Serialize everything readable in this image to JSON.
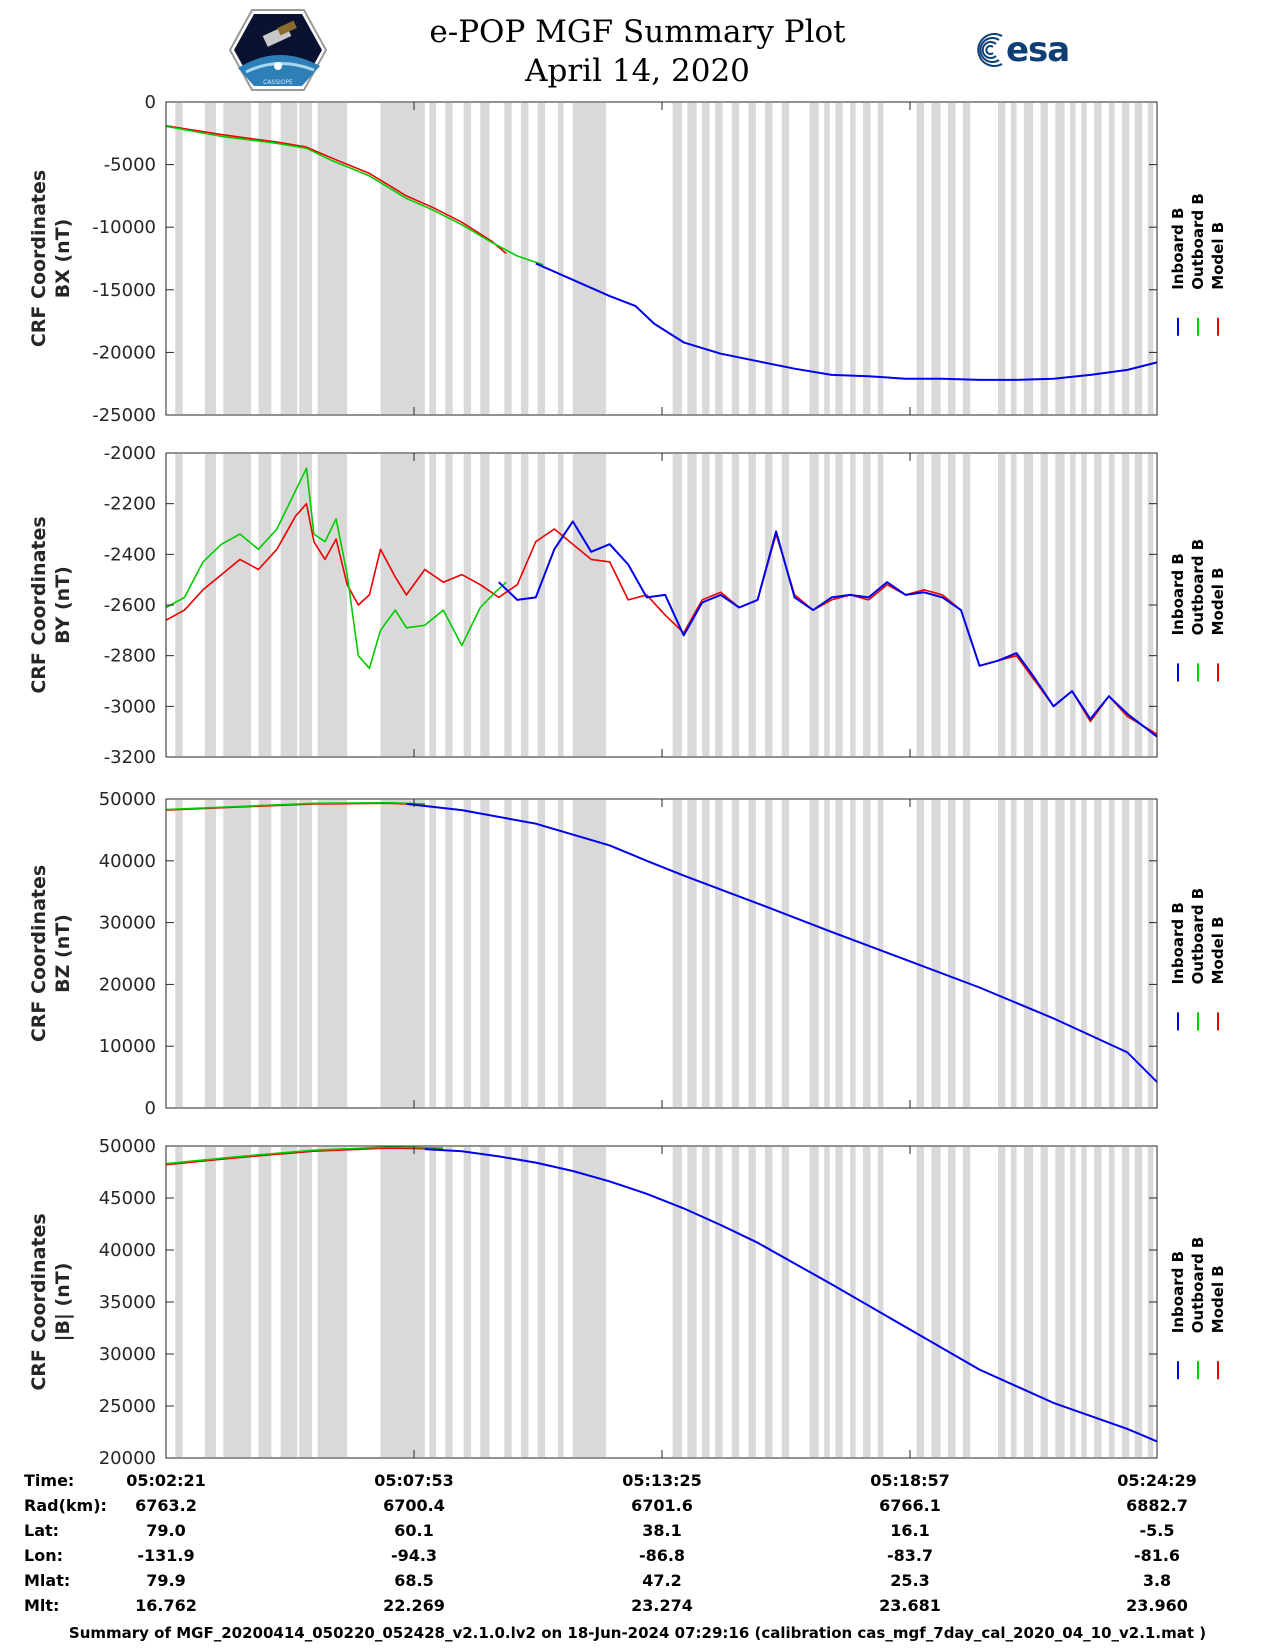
{
  "header": {
    "title": "e-POP MGF Summary Plot",
    "date": "April 14, 2020",
    "logo_left_text": "CASSIOPE",
    "logo_right_text": "esa"
  },
  "colors": {
    "inboard": "#0000ee",
    "outboard": "#00cc00",
    "model": "#ee0000",
    "shade": "#d9d9d9",
    "esa_blue": "#0d3f74"
  },
  "legend": [
    "Inboard B",
    "Outboard B",
    "Model B"
  ],
  "shaded_intervals": [
    [
      0.25,
      0.45
    ],
    [
      1.05,
      1.35
    ],
    [
      1.55,
      2.3
    ],
    [
      2.5,
      2.85
    ],
    [
      3.1,
      3.55
    ],
    [
      3.6,
      3.95
    ],
    [
      4.1,
      4.9
    ],
    [
      5.8,
      7.0
    ],
    [
      7.12,
      7.3
    ],
    [
      7.55,
      7.75
    ],
    [
      8.05,
      8.25
    ],
    [
      8.5,
      8.75
    ],
    [
      9.15,
      9.35
    ],
    [
      9.6,
      9.8
    ],
    [
      10.05,
      10.25
    ],
    [
      10.6,
      10.75
    ],
    [
      11.0,
      11.9
    ],
    [
      13.7,
      13.95
    ],
    [
      14.1,
      14.35
    ],
    [
      14.5,
      14.7
    ],
    [
      14.85,
      15.05
    ],
    [
      15.3,
      15.5
    ],
    [
      15.75,
      15.95
    ],
    [
      16.2,
      16.4
    ],
    [
      16.65,
      16.85
    ],
    [
      17.4,
      17.65
    ],
    [
      17.8,
      17.95
    ],
    [
      18.1,
      18.3
    ],
    [
      18.5,
      18.65
    ],
    [
      18.85,
      19.05
    ],
    [
      19.25,
      19.4
    ],
    [
      20.3,
      20.5
    ],
    [
      20.7,
      20.95
    ],
    [
      21.15,
      21.35
    ],
    [
      21.55,
      21.75
    ],
    [
      22.5,
      22.7
    ],
    [
      22.85,
      23.0
    ],
    [
      23.2,
      23.45
    ],
    [
      23.65,
      23.85
    ],
    [
      24.05,
      24.3
    ],
    [
      24.45,
      24.6
    ],
    [
      24.75,
      24.9
    ],
    [
      25.1,
      25.3
    ],
    [
      25.5,
      25.65
    ],
    [
      25.85,
      26.05
    ],
    [
      26.2,
      26.4
    ],
    [
      26.55,
      26.7
    ]
  ],
  "chart_data": [
    {
      "type": "line",
      "ylabel_line1": "CRF Coordinates",
      "ylabel_line2": "BX (nT)",
      "ylim": [
        -25000,
        0
      ],
      "yticks": [
        "0",
        "-5000",
        "-10000",
        "-15000",
        "-20000",
        "-25000"
      ],
      "ytick_values": [
        0,
        -5000,
        -10000,
        -15000,
        -20000,
        -25000
      ],
      "x_unit": "minutes after 05:02:21",
      "xlim": [
        0,
        26.8
      ],
      "series": [
        {
          "name": "Model B",
          "x": [
            0,
            1.5,
            3,
            3.8,
            4.5,
            5.5,
            6.5,
            7.2,
            8,
            8.8,
            9.2
          ],
          "values": [
            -1900,
            -2600,
            -3200,
            -3600,
            -4500,
            -5700,
            -7500,
            -8400,
            -9600,
            -11100,
            -12100
          ]
        },
        {
          "name": "Outboard B",
          "x": [
            0,
            1.5,
            3,
            3.8,
            4.5,
            5.5,
            6.5,
            7.2,
            8,
            8.8,
            9.5,
            10.2
          ],
          "values": [
            -1950,
            -2750,
            -3300,
            -3700,
            -4700,
            -5900,
            -7700,
            -8600,
            -9800,
            -11200,
            -12300,
            -13000
          ]
        },
        {
          "name": "Inboard B",
          "x": [
            10,
            11,
            12,
            12.7,
            13.2,
            14,
            15,
            16,
            17,
            18,
            19,
            20,
            21,
            22,
            23,
            24,
            25,
            26,
            26.8
          ],
          "values": [
            -12900,
            -14200,
            -15500,
            -16300,
            -17700,
            -19200,
            -20100,
            -20700,
            -21300,
            -21800,
            -21900,
            -22100,
            -22100,
            -22200,
            -22200,
            -22100,
            -21800,
            -21400,
            -20800
          ]
        }
      ]
    },
    {
      "type": "line",
      "ylabel_line1": "CRF Coordinates",
      "ylabel_line2": "BY (nT)",
      "ylim": [
        -3200,
        -2000
      ],
      "yticks": [
        "-2000",
        "-2200",
        "-2400",
        "-2600",
        "-2800",
        "-3000",
        "-3200"
      ],
      "ytick_values": [
        -2000,
        -2200,
        -2400,
        -2600,
        -2800,
        -3000,
        -3200
      ],
      "x_unit": "minutes after 05:02:21",
      "xlim": [
        0,
        26.8
      ],
      "series": [
        {
          "name": "Model B",
          "x": [
            0,
            0.5,
            1,
            1.5,
            2,
            2.5,
            3,
            3.5,
            3.8,
            4.0,
            4.3,
            4.6,
            4.9,
            5.2,
            5.5,
            5.8,
            6.2,
            6.5,
            7,
            7.5,
            8,
            8.5,
            9,
            9.5,
            10,
            10.5,
            11,
            11.5,
            12,
            12.5,
            13,
            13.5,
            14,
            14.5,
            15,
            15.5,
            16,
            16.5,
            17,
            17.5,
            18,
            18.5,
            19,
            19.5,
            20,
            20.5,
            21,
            21.5,
            22,
            22.5,
            23,
            23.5,
            24,
            24.5,
            25,
            25.5,
            26,
            26.8
          ],
          "values": [
            -2660,
            -2620,
            -2540,
            -2480,
            -2420,
            -2460,
            -2380,
            -2250,
            -2200,
            -2350,
            -2420,
            -2340,
            -2520,
            -2600,
            -2560,
            -2380,
            -2490,
            -2560,
            -2460,
            -2510,
            -2480,
            -2520,
            -2570,
            -2520,
            -2350,
            -2300,
            -2360,
            -2420,
            -2430,
            -2580,
            -2560,
            -2640,
            -2710,
            -2580,
            -2550,
            -2610,
            -2580,
            -2320,
            -2560,
            -2620,
            -2580,
            -2560,
            -2580,
            -2520,
            -2560,
            -2540,
            -2560,
            -2620,
            -2840,
            -2820,
            -2800,
            -2900,
            -3000,
            -2940,
            -3060,
            -2960,
            -3040,
            -3110
          ]
        },
        {
          "name": "Outboard B",
          "x": [
            0,
            0.5,
            1,
            1.5,
            2,
            2.5,
            3,
            3.5,
            3.8,
            4.0,
            4.3,
            4.6,
            4.9,
            5.2,
            5.5,
            5.8,
            6.2,
            6.5,
            7,
            7.5,
            8,
            8.5,
            8.9,
            9.2
          ],
          "values": [
            -2610,
            -2570,
            -2430,
            -2360,
            -2320,
            -2380,
            -2300,
            -2150,
            -2060,
            -2320,
            -2350,
            -2260,
            -2480,
            -2800,
            -2850,
            -2700,
            -2620,
            -2690,
            -2680,
            -2620,
            -2760,
            -2610,
            -2550,
            -2510
          ]
        },
        {
          "name": "Inboard B",
          "x": [
            9.0,
            9.5,
            10,
            10.5,
            11,
            11.5,
            12,
            12.5,
            13,
            13.5,
            14,
            14.5,
            15,
            15.5,
            16,
            16.5,
            17,
            17.5,
            18,
            18.5,
            19,
            19.5,
            20,
            20.5,
            21,
            21.5,
            22,
            22.5,
            23,
            23.5,
            24,
            24.5,
            25,
            25.5,
            26,
            26.8
          ],
          "values": [
            -2510,
            -2580,
            -2570,
            -2380,
            -2270,
            -2390,
            -2360,
            -2440,
            -2570,
            -2560,
            -2720,
            -2590,
            -2560,
            -2610,
            -2580,
            -2310,
            -2570,
            -2620,
            -2570,
            -2560,
            -2570,
            -2510,
            -2560,
            -2550,
            -2570,
            -2620,
            -2840,
            -2820,
            -2790,
            -2890,
            -3000,
            -2940,
            -3050,
            -2960,
            -3030,
            -3120
          ]
        }
      ]
    },
    {
      "type": "line",
      "ylabel_line1": "CRF Coordinates",
      "ylabel_line2": "BZ (nT)",
      "ylim": [
        0,
        50000
      ],
      "yticks": [
        "50000",
        "40000",
        "30000",
        "20000",
        "10000",
        "0"
      ],
      "ytick_values": [
        50000,
        40000,
        30000,
        20000,
        10000,
        0
      ],
      "x_unit": "minutes after 05:02:21",
      "xlim": [
        0,
        26.8
      ],
      "series": [
        {
          "name": "Model B",
          "x": [
            0,
            2,
            4,
            6,
            7
          ],
          "values": [
            48200,
            48700,
            49200,
            49300,
            49100
          ]
        },
        {
          "name": "Outboard B",
          "x": [
            0,
            2,
            4,
            6,
            7
          ],
          "values": [
            48300,
            48800,
            49300,
            49400,
            49200
          ]
        },
        {
          "name": "Inboard B",
          "x": [
            6.5,
            8,
            10,
            12,
            13,
            14,
            16,
            18,
            20,
            22,
            24,
            26,
            26.8
          ],
          "values": [
            49200,
            48200,
            46000,
            42500,
            40000,
            37600,
            33100,
            28500,
            24000,
            19500,
            14500,
            9000,
            4200
          ]
        }
      ]
    },
    {
      "type": "line",
      "ylabel_line1": "CRF Coordinates",
      "ylabel_line2": "|B| (nT)",
      "ylim": [
        20000,
        50000
      ],
      "yticks": [
        "50000",
        "45000",
        "40000",
        "35000",
        "30000",
        "25000",
        "20000"
      ],
      "ytick_values": [
        50000,
        45000,
        40000,
        35000,
        30000,
        25000,
        20000
      ],
      "x_unit": "minutes after 05:02:21",
      "xlim": [
        0,
        26.8
      ],
      "series": [
        {
          "name": "Model B",
          "x": [
            0,
            2,
            4,
            6,
            7.5
          ],
          "values": [
            48200,
            48900,
            49500,
            49800,
            49700
          ]
        },
        {
          "name": "Outboard B",
          "x": [
            0,
            2,
            4,
            6,
            7.5
          ],
          "values": [
            48300,
            49000,
            49600,
            49900,
            49800
          ]
        },
        {
          "name": "Inboard B",
          "x": [
            7,
            8,
            9,
            10,
            11,
            12,
            13,
            14,
            15,
            16,
            18,
            20,
            22,
            24,
            26,
            26.8
          ],
          "values": [
            49700,
            49500,
            49000,
            48400,
            47600,
            46600,
            45400,
            44000,
            42400,
            40700,
            36700,
            32600,
            28500,
            25300,
            22800,
            21600
          ]
        }
      ]
    }
  ],
  "info_table": {
    "labels": [
      "Time:",
      "Rad(km):",
      "Lat:",
      "Lon:",
      "Mlat:",
      "Mlt:"
    ],
    "columns": [
      [
        "05:02:21",
        "6763.2",
        "79.0",
        "-131.9",
        "79.9",
        "16.762"
      ],
      [
        "05:07:53",
        "6700.4",
        "60.1",
        "-94.3",
        "68.5",
        "22.269"
      ],
      [
        "05:13:25",
        "6701.6",
        "38.1",
        "-86.8",
        "47.2",
        "23.274"
      ],
      [
        "05:18:57",
        "6766.1",
        "16.1",
        "-83.7",
        "25.3",
        "23.681"
      ],
      [
        "05:24:29",
        "6882.7",
        "-5.5",
        "-81.6",
        "3.8",
        "23.960"
      ]
    ]
  },
  "footer": "Summary of MGF_20200414_050220_052428_v2.1.0.lv2 on 18-Jun-2024 07:29:16 (calibration cas_mgf_7day_cal_2020_04_10_v2.1.mat )"
}
